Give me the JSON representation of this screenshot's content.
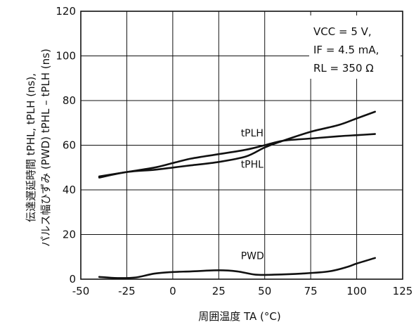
{
  "chart_data": {
    "type": "line",
    "xlabel": "周囲温度 TA (°C)",
    "ylabel_line1": "伝達遅延時間 tPHL, tPLH (ns),",
    "ylabel_line2": "パルス幅ひずみ (PWD) tPHL – tPLH (ns)",
    "xlim": [
      -50,
      125
    ],
    "ylim": [
      0,
      120
    ],
    "xticks": [
      "-50",
      "-25",
      "0",
      "25",
      "50",
      "75",
      "100",
      "125"
    ],
    "yticks": [
      "0",
      "20",
      "40",
      "60",
      "80",
      "100",
      "120"
    ],
    "grid": true,
    "conditions": [
      "VCC = 5 V,",
      "IF = 4.5 mA,",
      "RL = 350 Ω"
    ],
    "series": [
      {
        "name": "tPLH",
        "x": [
          -40,
          -25,
          -10,
          0,
          10,
          25,
          40,
          50,
          60,
          75,
          90,
          100,
          110
        ],
        "y": [
          46,
          48,
          50,
          52,
          54,
          56,
          58,
          60,
          62,
          63,
          64,
          64.5,
          65
        ]
      },
      {
        "name": "tPHL",
        "x": [
          -40,
          -25,
          -10,
          0,
          10,
          25,
          40,
          50,
          60,
          75,
          90,
          100,
          110
        ],
        "y": [
          45.5,
          48,
          49,
          50,
          51,
          52.5,
          55,
          59,
          62,
          66,
          69,
          72,
          75
        ]
      },
      {
        "name": "PWD",
        "x": [
          -40,
          -30,
          -20,
          -10,
          0,
          10,
          25,
          35,
          45,
          55,
          70,
          85,
          95,
          100,
          110
        ],
        "y": [
          1,
          0.5,
          0.8,
          2.5,
          3.2,
          3.5,
          4,
          3.5,
          2,
          2,
          2.5,
          3.5,
          5.5,
          7,
          9.5
        ]
      }
    ],
    "series_labels": [
      {
        "text": "tPLH",
        "x": 37,
        "y": 64
      },
      {
        "text": "tPHL",
        "x": 37,
        "y": 50
      },
      {
        "text": "PWD",
        "x": 37,
        "y": 9
      }
    ]
  }
}
